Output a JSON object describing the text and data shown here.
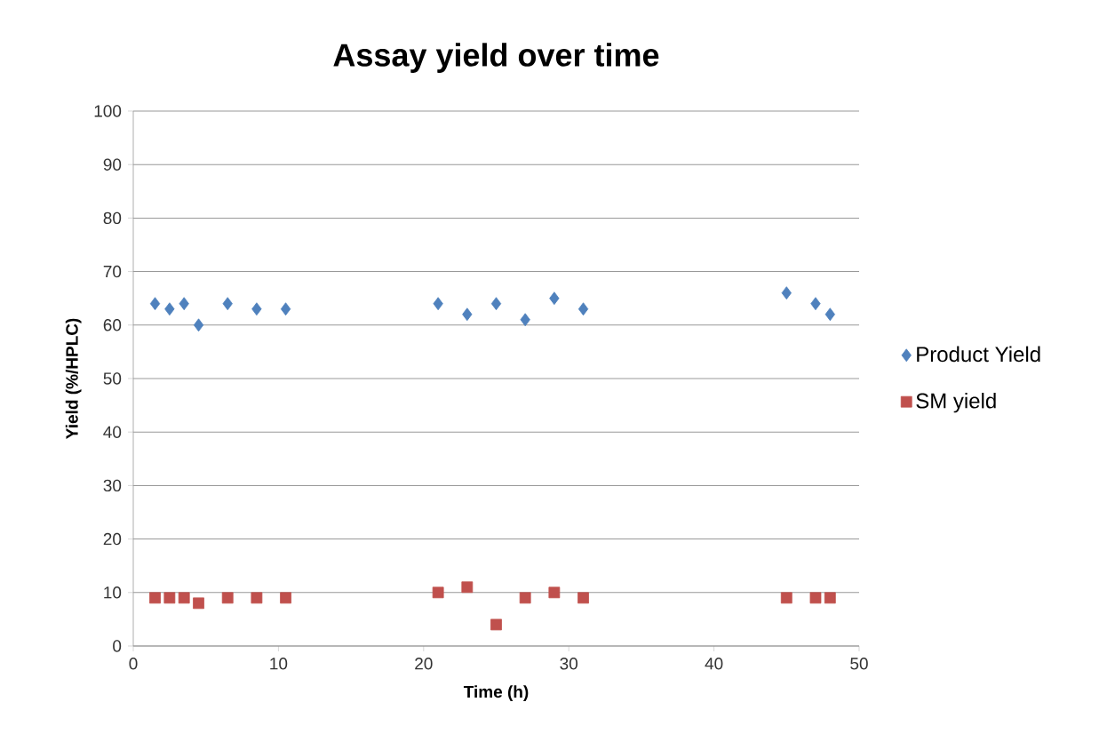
{
  "chart_data": {
    "type": "scatter",
    "title": "Assay yield over time",
    "xlabel": "Time (h)",
    "ylabel": "Yield (%/HPLC)",
    "x": [
      1.5,
      2.5,
      3.5,
      4.5,
      6.5,
      8.5,
      10.5,
      21,
      23,
      25,
      27,
      29,
      31,
      45,
      47,
      48
    ],
    "series": [
      {
        "name": "Product Yield",
        "color": "#4f81bd",
        "marker": "diamond",
        "values": [
          64,
          63,
          64,
          60,
          64,
          63,
          63,
          64,
          62,
          64,
          61,
          65,
          63,
          66,
          64,
          62
        ]
      },
      {
        "name": "SM yield",
        "color": "#c0504d",
        "marker": "square",
        "values": [
          9,
          9,
          9,
          8,
          9,
          9,
          9,
          10,
          11,
          4,
          9,
          10,
          9,
          9,
          9,
          9
        ]
      }
    ],
    "xlim": [
      0,
      50
    ],
    "xticks": [
      0,
      10,
      20,
      30,
      40,
      50
    ],
    "ylim": [
      0,
      100
    ],
    "yticks": [
      0,
      10,
      20,
      30,
      40,
      50,
      60,
      70,
      80,
      90,
      100
    ],
    "grid": "y",
    "legend": "right"
  }
}
